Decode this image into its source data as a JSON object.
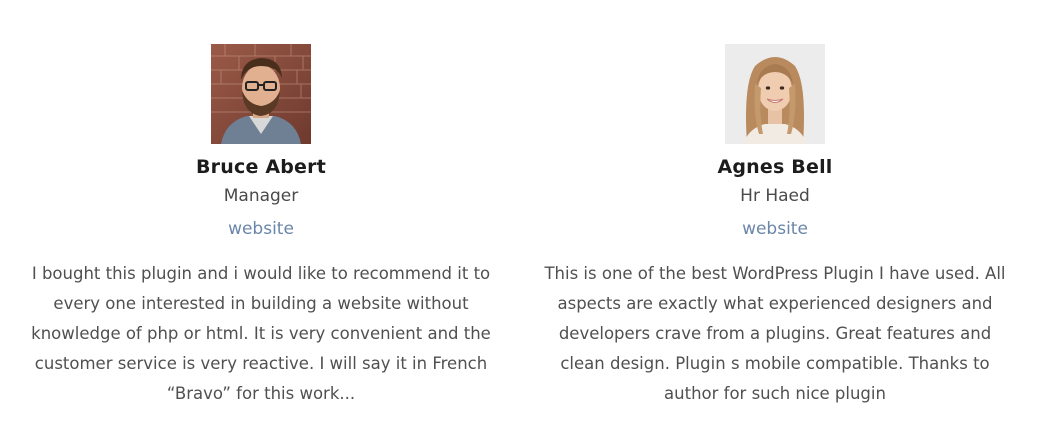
{
  "testimonials": [
    {
      "name": "Bruce Abert",
      "role": "Manager",
      "link_label": "website",
      "quote": "I bought this plugin and i would like to recommend it to every one interested in building a website without knowledge of php or html. It is very convenient and the customer service is very reactive. I will say it in French “Bravo” for this work..."
    },
    {
      "name": "Agnes Bell",
      "role": "Hr Haed",
      "link_label": "website",
      "quote": "This is one of the best WordPress Plugin I have used. All aspects are exactly what experienced designers and developers crave from a plugins. Great features and clean design. Plugin s mobile compatible. Thanks to author for such nice plugin"
    }
  ],
  "colors": {
    "name": "#1c1c1c",
    "role": "#4a4a4a",
    "link": "#6a86a8",
    "quote": "#505050"
  }
}
